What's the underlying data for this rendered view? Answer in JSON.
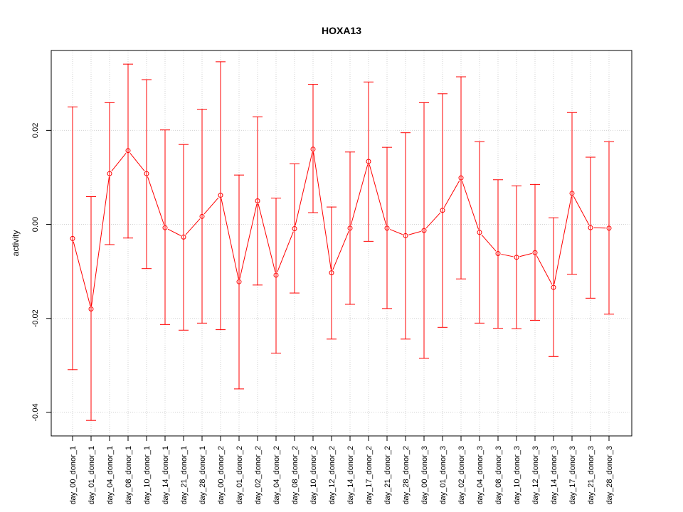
{
  "chart_data": {
    "type": "line",
    "title": "HOXA13",
    "xlabel": "",
    "ylabel": "activity",
    "ylim": [
      -0.045,
      0.037
    ],
    "yticks": [
      -0.04,
      -0.02,
      0.0,
      0.02
    ],
    "ytick_labels": [
      "-0.04",
      "-0.02",
      "0.00",
      "0.02"
    ],
    "grid": true,
    "color": "#ff0000",
    "categories": [
      "day_00_donor_1",
      "day_01_donor_1",
      "day_04_donor_1",
      "day_08_donor_1",
      "day_10_donor_1",
      "day_14_donor_1",
      "day_21_donor_1",
      "day_28_donor_1",
      "day_00_donor_2",
      "day_01_donor_2",
      "day_02_donor_2",
      "day_04_donor_2",
      "day_08_donor_2",
      "day_10_donor_2",
      "day_12_donor_2",
      "day_14_donor_2",
      "day_17_donor_2",
      "day_21_donor_2",
      "day_28_donor_2",
      "day_00_donor_3",
      "day_01_donor_3",
      "day_02_donor_3",
      "day_04_donor_3",
      "day_08_donor_3",
      "day_10_donor_3",
      "day_12_donor_3",
      "day_14_donor_3",
      "day_17_donor_3",
      "day_21_donor_3",
      "day_28_donor_3"
    ],
    "values": [
      -0.003,
      -0.018,
      0.0108,
      0.0157,
      0.0108,
      -0.0007,
      -0.0027,
      0.0017,
      0.0062,
      -0.0122,
      0.005,
      -0.0108,
      -0.0009,
      0.016,
      -0.0103,
      -0.0008,
      0.0134,
      -0.0008,
      -0.0024,
      -0.0013,
      0.003,
      0.0099,
      -0.0017,
      -0.0062,
      -0.007,
      -0.006,
      -0.0134,
      0.0066,
      -0.0007,
      -0.0008
    ],
    "lower": [
      -0.0309,
      -0.0417,
      -0.0043,
      -0.0029,
      -0.0094,
      -0.0213,
      -0.0225,
      -0.021,
      -0.0224,
      -0.035,
      -0.0129,
      -0.0274,
      -0.0146,
      0.0025,
      -0.0244,
      -0.017,
      -0.0036,
      -0.0179,
      -0.0244,
      -0.0285,
      -0.0219,
      -0.0116,
      -0.021,
      -0.0221,
      -0.0222,
      -0.0204,
      -0.0281,
      -0.0106,
      -0.0157,
      -0.0191
    ],
    "upper": [
      0.025,
      0.0059,
      0.0259,
      0.0341,
      0.0308,
      0.0201,
      0.017,
      0.0245,
      0.0346,
      0.0105,
      0.0229,
      0.0056,
      0.0129,
      0.0298,
      0.0037,
      0.0154,
      0.0303,
      0.0164,
      0.0195,
      0.0259,
      0.0278,
      0.0314,
      0.0176,
      0.0095,
      0.0082,
      0.0085,
      0.0014,
      0.0238,
      0.0143,
      0.0176
    ]
  }
}
